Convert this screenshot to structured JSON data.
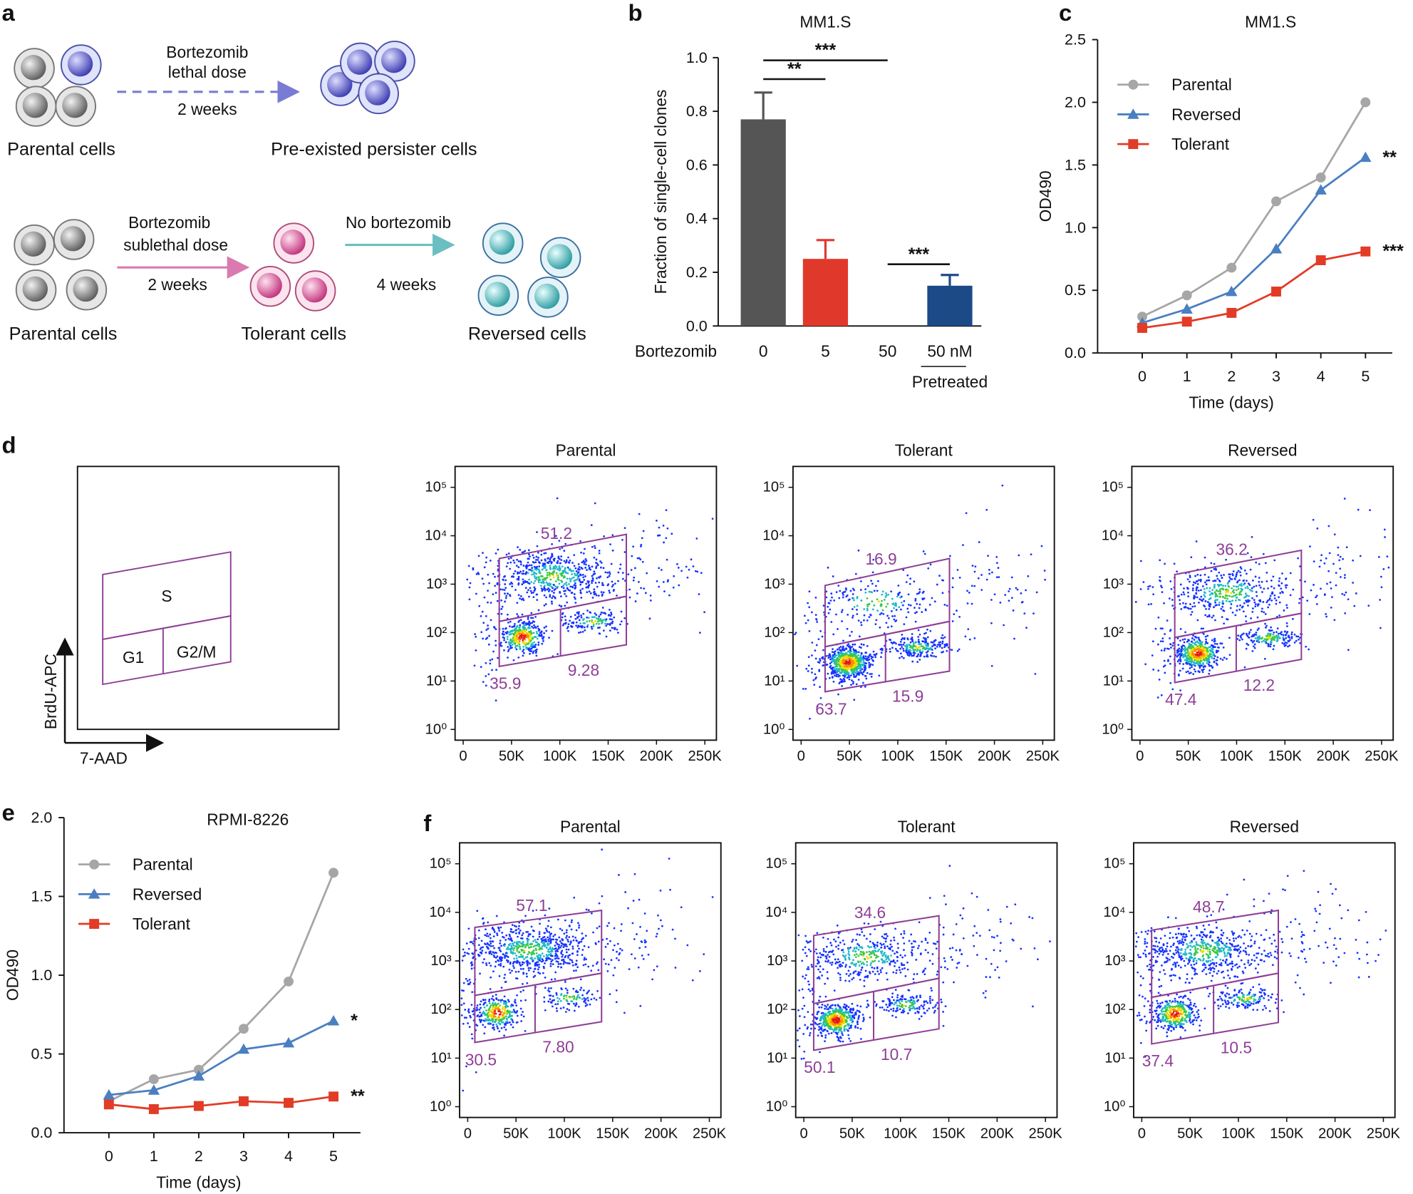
{
  "diagram": {
    "panel": "a",
    "top": {
      "start": "Parental cells",
      "treatment": [
        "Bortezomib",
        "lethal dose"
      ],
      "duration": "2 weeks",
      "result": "Pre-existed persister cells"
    },
    "bottom": {
      "start": "Parental cells",
      "treatment": [
        "Bortezomib",
        "sublethal dose"
      ],
      "duration": "2 weeks",
      "middle": "Tolerant cells",
      "recovery": "No bortezomib",
      "recovery_duration": "4 weeks",
      "result": "Reversed cells"
    }
  },
  "gating_schematic": {
    "panel": "d",
    "gates": [
      "S",
      "G1",
      "G2/M"
    ],
    "y_axis": "BrdU-APC",
    "x_axis": "7-AAD"
  },
  "chart_data": [
    {
      "type": "bar",
      "panel": "b",
      "title": "MM1.S",
      "y_label": "Fraction of single-cell clones",
      "x_label": "Bortezomib",
      "categories": [
        "0",
        "5",
        "50",
        "50 nM"
      ],
      "sublabels": [
        null,
        null,
        null,
        "Pretreated"
      ],
      "values": [
        0.77,
        0.25,
        0,
        0.15
      ],
      "errors": [
        0.1,
        0.07,
        null,
        0.04
      ],
      "colors": [
        "#555555",
        "#e0392b",
        "#555555",
        "#1b4a87"
      ],
      "ylim": [
        0,
        1
      ],
      "yticks": [
        {
          "value": 0,
          "label": "0.0"
        },
        0.2,
        0.4,
        0.6,
        0.8,
        {
          "value": 1,
          "label": "1.0"
        }
      ],
      "significance": [
        {
          "between": [
            0,
            1
          ],
          "y": 0.92,
          "label": "**"
        },
        {
          "between": [
            0,
            2
          ],
          "y": 0.99,
          "label": "***"
        },
        {
          "between": [
            2,
            3
          ],
          "y": 0.23,
          "label": "***"
        }
      ]
    },
    {
      "type": "line",
      "panel": "c",
      "title": "MM1.S",
      "x_label": "Time (days)",
      "y_label": "OD490",
      "x": [
        0,
        1,
        2,
        3,
        4,
        5
      ],
      "series": [
        {
          "name": "Parental",
          "color": "#a6a6a6",
          "marker": "circle",
          "values": [
            0.29,
            0.46,
            0.68,
            1.21,
            1.4,
            2.0
          ]
        },
        {
          "name": "Reversed",
          "color": "#4a7fc1",
          "marker": "triangle",
          "values": [
            0.24,
            0.35,
            0.49,
            0.83,
            1.3,
            1.56
          ],
          "significance": "**"
        },
        {
          "name": "Tolerant",
          "color": "#e23b26",
          "marker": "square",
          "values": [
            0.2,
            0.25,
            0.32,
            0.49,
            0.74,
            0.81
          ],
          "significance": "***"
        }
      ],
      "xlim": [
        -1,
        5.6
      ],
      "xticks": [
        0,
        1,
        2,
        3,
        4,
        5
      ],
      "ylim": [
        0,
        2.5
      ],
      "yticks": [
        {
          "value": 0,
          "label": "0.0"
        },
        0.5,
        {
          "value": 1,
          "label": "1.0"
        },
        1.5,
        {
          "value": 2,
          "label": "2.0"
        },
        2.5
      ],
      "legend": "upper left"
    },
    {
      "type": "line",
      "panel": "e",
      "title": "RPMI-8226",
      "x_label": "Time (days)",
      "y_label": "OD490",
      "x": [
        0,
        1,
        2,
        3,
        4,
        5
      ],
      "series": [
        {
          "name": "Parental",
          "color": "#a6a6a6",
          "marker": "circle",
          "values": [
            0.2,
            0.34,
            0.4,
            0.66,
            0.96,
            1.65
          ]
        },
        {
          "name": "Reversed",
          "color": "#4a7fc1",
          "marker": "triangle",
          "values": [
            0.24,
            0.27,
            0.36,
            0.53,
            0.57,
            0.71
          ],
          "significance": "*"
        },
        {
          "name": "Tolerant",
          "color": "#e23b26",
          "marker": "square",
          "values": [
            0.18,
            0.15,
            0.17,
            0.2,
            0.19,
            0.23
          ],
          "significance": "**"
        }
      ],
      "xlim": [
        -1,
        5.6
      ],
      "xticks": [
        0,
        1,
        2,
        3,
        4,
        5
      ],
      "ylim": [
        0,
        2
      ],
      "yticks": [
        {
          "value": 0,
          "label": "0.0"
        },
        0.5,
        {
          "value": 1,
          "label": "1.0"
        },
        1.5,
        {
          "value": 2,
          "label": "2.0"
        }
      ],
      "legend": "upper left"
    },
    {
      "type": "flow",
      "title": "Parental",
      "yscale": "log",
      "xlim": [
        -8400,
        262000
      ],
      "ylim": [
        0.6,
        270000
      ],
      "xticks": [
        0,
        {
          "value": 50000,
          "label": "50K"
        },
        {
          "value": 100000,
          "label": "100K"
        },
        {
          "value": 150000,
          "label": "150K"
        },
        {
          "value": 200000,
          "label": "200K"
        },
        {
          "value": 250000,
          "label": "250K"
        }
      ],
      "yticks": [
        {
          "value": 1,
          "label": "10⁰"
        },
        {
          "value": 10,
          "label": "10¹"
        },
        {
          "value": 100,
          "label": "10²"
        },
        {
          "value": 1000,
          "label": "10³"
        },
        {
          "value": 10000,
          "label": "10⁴"
        },
        {
          "value": 100000,
          "label": "10⁵"
        }
      ],
      "gate": {
        "x": [
          37300,
          100700,
          168800
        ],
        "top": [
          3390,
          10700
        ],
        "split": [
          170,
          562
        ],
        "bottom": [
          20,
          56
        ]
      },
      "gate_color": "#8e3e96",
      "values": [
        51.2,
        35.9,
        9.28
      ]
    },
    {
      "type": "flow",
      "title": "Tolerant",
      "yscale": "log",
      "xlim": [
        -8400,
        262000
      ],
      "ylim": [
        0.6,
        270000
      ],
      "xticks": [
        0,
        {
          "value": 50000,
          "label": "50K"
        },
        {
          "value": 100000,
          "label": "100K"
        },
        {
          "value": 150000,
          "label": "150K"
        },
        {
          "value": 200000,
          "label": "200K"
        },
        {
          "value": 250000,
          "label": "250K"
        }
      ],
      "yticks": [
        {
          "value": 1,
          "label": "10⁰"
        },
        {
          "value": 10,
          "label": "10¹"
        },
        {
          "value": 100,
          "label": "10²"
        },
        {
          "value": 1000,
          "label": "10³"
        },
        {
          "value": 10000,
          "label": "10⁴"
        },
        {
          "value": 100000,
          "label": "10⁵"
        }
      ],
      "gate": {
        "x": [
          24800,
          87300,
          153500
        ],
        "top": [
          940,
          3390
        ],
        "split": [
          51,
          170
        ],
        "bottom": [
          6,
          16
        ]
      },
      "gate_color": "#8e3e96",
      "values": [
        16.9,
        63.7,
        15.9
      ]
    },
    {
      "type": "flow",
      "title": "Reversed",
      "yscale": "log",
      "xlim": [
        -8400,
        262000
      ],
      "ylim": [
        0.6,
        270000
      ],
      "xticks": [
        0,
        {
          "value": 50000,
          "label": "50K"
        },
        {
          "value": 100000,
          "label": "100K"
        },
        {
          "value": 150000,
          "label": "150K"
        },
        {
          "value": 200000,
          "label": "200K"
        },
        {
          "value": 250000,
          "label": "250K"
        }
      ],
      "yticks": [
        {
          "value": 1,
          "label": "10⁰"
        },
        {
          "value": 10,
          "label": "10¹"
        },
        {
          "value": 100,
          "label": "10²"
        },
        {
          "value": 1000,
          "label": "10³"
        },
        {
          "value": 10000,
          "label": "10⁴"
        },
        {
          "value": 100000,
          "label": "10⁵"
        }
      ],
      "gate": {
        "x": [
          36000,
          99600,
          167000
        ],
        "top": [
          1580,
          5000
        ],
        "split": [
          79,
          250
        ],
        "bottom": [
          9.3,
          28
        ]
      },
      "gate_color": "#8e3e96",
      "values": [
        36.2,
        47.4,
        12.2
      ]
    },
    {
      "type": "flow",
      "panel": "f",
      "title": "Parental",
      "yscale": "log",
      "xlim": [
        -8400,
        262000
      ],
      "ylim": [
        0.6,
        270000
      ],
      "xticks": [
        0,
        {
          "value": 50000,
          "label": "50K"
        },
        {
          "value": 100000,
          "label": "100K"
        },
        {
          "value": 150000,
          "label": "150K"
        },
        {
          "value": 200000,
          "label": "200K"
        },
        {
          "value": 250000,
          "label": "250K"
        }
      ],
      "yticks": [
        {
          "value": 1,
          "label": "10⁰"
        },
        {
          "value": 10,
          "label": "10¹"
        },
        {
          "value": 100,
          "label": "10²"
        },
        {
          "value": 1000,
          "label": "10³"
        },
        {
          "value": 10000,
          "label": "10⁴"
        },
        {
          "value": 100000,
          "label": "10⁵"
        }
      ],
      "gate": {
        "x": [
          7400,
          69700,
          138500
        ],
        "top": [
          4900,
          11000
        ],
        "split": [
          195,
          560
        ],
        "bottom": [
          21,
          56
        ]
      },
      "gate_color": "#8e3e96",
      "values": [
        57.1,
        30.5,
        7.8
      ],
      "value_labels": [
        "57.1",
        "30.5",
        "7.80"
      ]
    },
    {
      "type": "flow",
      "title": "Tolerant",
      "yscale": "log",
      "xlim": [
        -8400,
        262000
      ],
      "ylim": [
        0.6,
        270000
      ],
      "xticks": [
        0,
        {
          "value": 50000,
          "label": "50K"
        },
        {
          "value": 100000,
          "label": "100K"
        },
        {
          "value": 150000,
          "label": "150K"
        },
        {
          "value": 200000,
          "label": "200K"
        },
        {
          "value": 250000,
          "label": "250K"
        }
      ],
      "yticks": [
        {
          "value": 1,
          "label": "10⁰"
        },
        {
          "value": 10,
          "label": "10¹"
        },
        {
          "value": 100,
          "label": "10²"
        },
        {
          "value": 1000,
          "label": "10³"
        },
        {
          "value": 10000,
          "label": "10⁴"
        },
        {
          "value": 100000,
          "label": "10⁵"
        }
      ],
      "gate": {
        "x": [
          10200,
          72200,
          139800
        ],
        "top": [
          3330,
          8500
        ],
        "split": [
          132,
          440
        ],
        "bottom": [
          14.5,
          40
        ]
      },
      "gate_color": "#8e3e96",
      "values": [
        34.6,
        50.1,
        10.7
      ]
    },
    {
      "type": "flow",
      "title": "Reversed",
      "yscale": "log",
      "xlim": [
        -8400,
        262000
      ],
      "ylim": [
        0.6,
        270000
      ],
      "xticks": [
        0,
        {
          "value": 50000,
          "label": "50K"
        },
        {
          "value": 100000,
          "label": "100K"
        },
        {
          "value": 150000,
          "label": "150K"
        },
        {
          "value": 200000,
          "label": "200K"
        },
        {
          "value": 250000,
          "label": "250K"
        }
      ],
      "yticks": [
        {
          "value": 1,
          "label": "10⁰"
        },
        {
          "value": 10,
          "label": "10¹"
        },
        {
          "value": 100,
          "label": "10²"
        },
        {
          "value": 1000,
          "label": "10³"
        },
        {
          "value": 10000,
          "label": "10⁴"
        },
        {
          "value": 100000,
          "label": "10⁵"
        }
      ],
      "gate": {
        "x": [
          10200,
          74300,
          141300
        ],
        "top": [
          4300,
          11000
        ],
        "split": [
          178,
          560
        ],
        "bottom": [
          19.6,
          54
        ]
      },
      "gate_color": "#8e3e96",
      "values": [
        48.7,
        37.4,
        10.5
      ]
    }
  ]
}
